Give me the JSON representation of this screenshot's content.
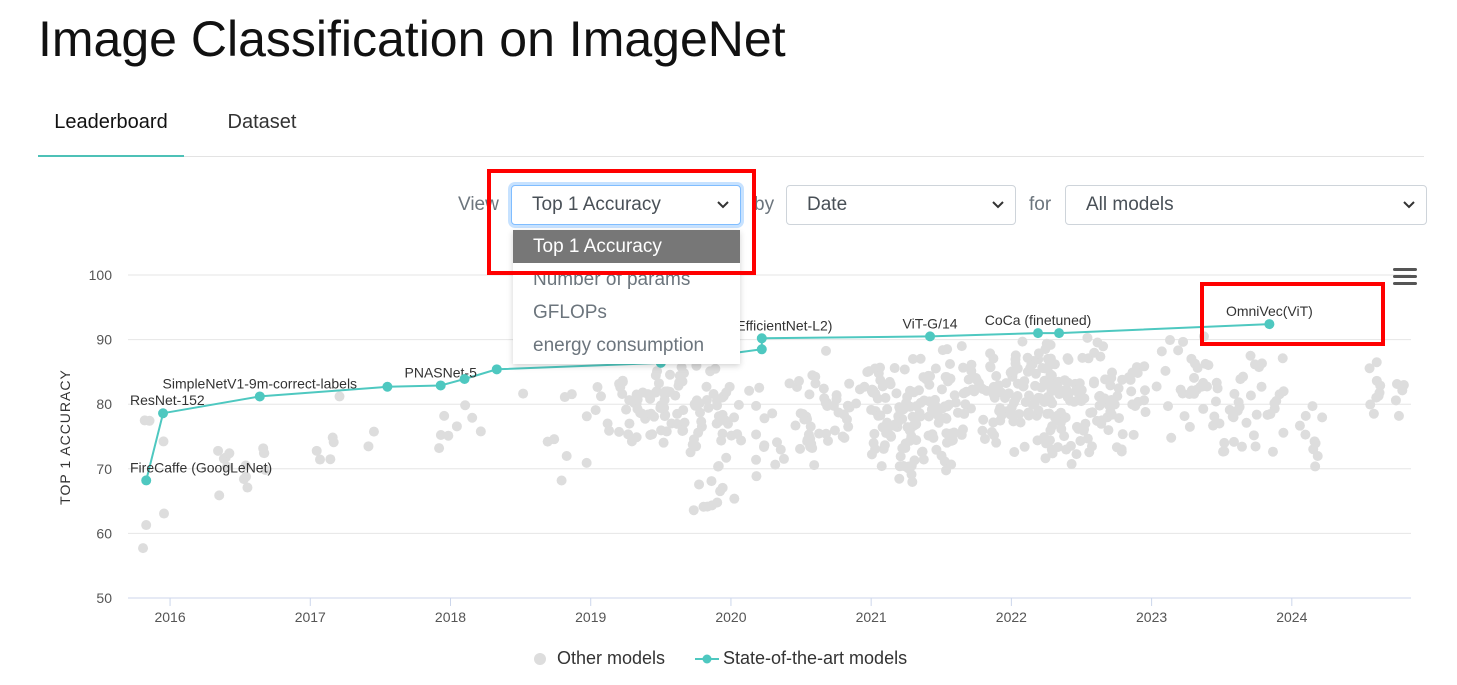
{
  "page": {
    "title": "Image Classification on ImageNet"
  },
  "tabs": [
    {
      "label": "Leaderboard",
      "active": true
    },
    {
      "label": "Dataset",
      "active": false
    }
  ],
  "controls": {
    "view_label": "View",
    "by_label": "by",
    "for_label": "for",
    "metric_value": "Top 1 Accuracy",
    "x_value": "Date",
    "models_value": "All models"
  },
  "dropdown": {
    "options": [
      "Top 1 Accuracy",
      "Number of params",
      "GFLOPs",
      "energy consumption"
    ],
    "selected_index": 0
  },
  "legend": {
    "other": "Other models",
    "sota": "State-of-the-art models"
  },
  "colors": {
    "sota": "#4ec8c0",
    "other": "#dddddd",
    "highlight": "#ff0000",
    "tab_underline": "#4ec1b7"
  },
  "icons": {
    "menu": "hamburger-menu-icon",
    "chevron": "chevron-down-icon"
  },
  "chart_data": {
    "type": "scatter",
    "ylabel": "TOP 1 ACCURACY",
    "xlabel": "",
    "ylim": [
      50,
      100
    ],
    "yticks": [
      "50",
      "60",
      "70",
      "80",
      "90",
      "100"
    ],
    "xlim": [
      2015.7,
      2024.85
    ],
    "xticks": [
      "2016",
      "2017",
      "2018",
      "2019",
      "2020",
      "2021",
      "2022",
      "2023",
      "2024"
    ],
    "grid": true,
    "legend_position": "bottom",
    "sota_series": {
      "name": "State-of-the-art models",
      "points": [
        {
          "x": 2015.83,
          "y": 68.2,
          "label": "FireCaffe (GoogLeNet)"
        },
        {
          "x": 2015.95,
          "y": 78.6,
          "label": "ResNet-152"
        },
        {
          "x": 2016.64,
          "y": 81.2,
          "label": "SimpleNetV1-9m-correct-labels"
        },
        {
          "x": 2017.55,
          "y": 82.7,
          "label": ""
        },
        {
          "x": 2017.93,
          "y": 82.9,
          "label": "PNASNet-5"
        },
        {
          "x": 2018.1,
          "y": 83.9,
          "label": ""
        },
        {
          "x": 2018.33,
          "y": 85.4,
          "label": ""
        },
        {
          "x": 2019.5,
          "y": 86.4,
          "label": ""
        },
        {
          "x": 2020.22,
          "y": 88.5,
          "label": ""
        },
        {
          "x": 2020.22,
          "y": 90.2,
          "label": "labels (EfficientNet-L2)"
        },
        {
          "x": 2021.42,
          "y": 90.5,
          "label": "ViT-G/14"
        },
        {
          "x": 2022.19,
          "y": 91.0,
          "label": "CoCa (finetuned)"
        },
        {
          "x": 2022.34,
          "y": 91.0,
          "label": ""
        },
        {
          "x": 2023.84,
          "y": 92.4,
          "label": "OmniVec(ViT)"
        }
      ]
    },
    "other_series": {
      "name": "Other models",
      "clusters": [
        {
          "x": [
            2015.8,
            2016.0
          ],
          "y": [
            57,
            80
          ],
          "n": 6
        },
        {
          "x": [
            2016.3,
            2016.7
          ],
          "y": [
            60,
            80
          ],
          "n": 14
        },
        {
          "x": [
            2016.7,
            2017.5
          ],
          "y": [
            70,
            82
          ],
          "n": 8
        },
        {
          "x": [
            2017.9,
            2018.3
          ],
          "y": [
            70,
            84
          ],
          "n": 8
        },
        {
          "x": [
            2018.5,
            2019.2
          ],
          "y": [
            66,
            86
          ],
          "n": 14
        },
        {
          "x": [
            2019.2,
            2020.0
          ],
          "y": [
            72,
            88
          ],
          "n": 90
        },
        {
          "x": [
            2019.7,
            2020.2
          ],
          "y": [
            58,
            88
          ],
          "n": 30
        },
        {
          "x": [
            2020.2,
            2020.6
          ],
          "y": [
            66,
            86
          ],
          "n": 30
        },
        {
          "x": [
            2020.6,
            2021.0
          ],
          "y": [
            70,
            90
          ],
          "n": 30
        },
        {
          "x": [
            2021.0,
            2021.6
          ],
          "y": [
            66,
            90
          ],
          "n": 130
        },
        {
          "x": [
            2021.6,
            2022.4
          ],
          "y": [
            72,
            90
          ],
          "n": 90
        },
        {
          "x": [
            2022.0,
            2022.9
          ],
          "y": [
            70,
            91
          ],
          "n": 140
        },
        {
          "x": [
            2022.9,
            2023.5
          ],
          "y": [
            74,
            91
          ],
          "n": 40
        },
        {
          "x": [
            2023.5,
            2023.95
          ],
          "y": [
            70,
            90
          ],
          "n": 35
        },
        {
          "x": [
            2024.0,
            2024.25
          ],
          "y": [
            64,
            86
          ],
          "n": 10
        },
        {
          "x": [
            2024.55,
            2024.8
          ],
          "y": [
            77,
            88
          ],
          "n": 14
        }
      ]
    }
  }
}
